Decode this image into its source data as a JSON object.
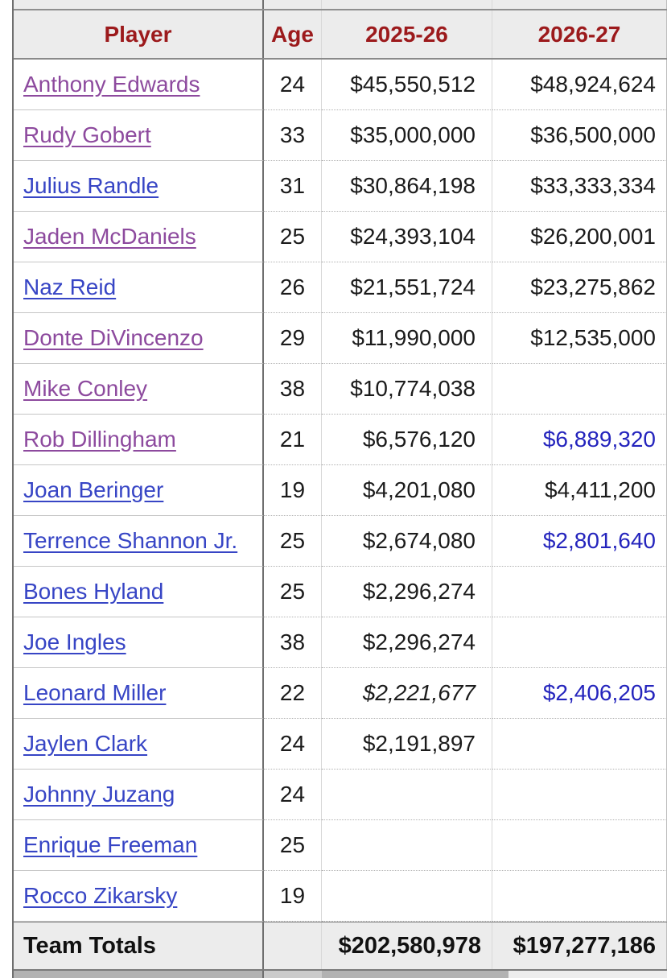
{
  "table": {
    "columns": [
      {
        "label": "Player"
      },
      {
        "label": "Age"
      },
      {
        "label": "2025-26"
      },
      {
        "label": "2026-27"
      }
    ],
    "rows": [
      {
        "player": "Anthony Edwards",
        "age": "24",
        "s2526": "$45,550,512",
        "s2627": "$48,924,624",
        "link_visited": true,
        "s2526_italic": false,
        "s2627_blue": false
      },
      {
        "player": "Rudy Gobert",
        "age": "33",
        "s2526": "$35,000,000",
        "s2627": "$36,500,000",
        "link_visited": true,
        "s2526_italic": false,
        "s2627_blue": false
      },
      {
        "player": "Julius Randle",
        "age": "31",
        "s2526": "$30,864,198",
        "s2627": "$33,333,334",
        "link_visited": false,
        "s2526_italic": false,
        "s2627_blue": false
      },
      {
        "player": "Jaden McDaniels",
        "age": "25",
        "s2526": "$24,393,104",
        "s2627": "$26,200,001",
        "link_visited": true,
        "s2526_italic": false,
        "s2627_blue": false
      },
      {
        "player": "Naz Reid",
        "age": "26",
        "s2526": "$21,551,724",
        "s2627": "$23,275,862",
        "link_visited": false,
        "s2526_italic": false,
        "s2627_blue": false
      },
      {
        "player": "Donte DiVincenzo",
        "age": "29",
        "s2526": "$11,990,000",
        "s2627": "$12,535,000",
        "link_visited": true,
        "s2526_italic": false,
        "s2627_blue": false
      },
      {
        "player": "Mike Conley",
        "age": "38",
        "s2526": "$10,774,038",
        "s2627": "",
        "link_visited": true,
        "s2526_italic": false,
        "s2627_blue": false
      },
      {
        "player": "Rob Dillingham",
        "age": "21",
        "s2526": "$6,576,120",
        "s2627": "$6,889,320",
        "link_visited": true,
        "s2526_italic": false,
        "s2627_blue": true
      },
      {
        "player": "Joan Beringer",
        "age": "19",
        "s2526": "$4,201,080",
        "s2627": "$4,411,200",
        "link_visited": false,
        "s2526_italic": false,
        "s2627_blue": false
      },
      {
        "player": "Terrence Shannon Jr.",
        "age": "25",
        "s2526": "$2,674,080",
        "s2627": "$2,801,640",
        "link_visited": false,
        "s2526_italic": false,
        "s2627_blue": true
      },
      {
        "player": "Bones Hyland",
        "age": "25",
        "s2526": "$2,296,274",
        "s2627": "",
        "link_visited": false,
        "s2526_italic": false,
        "s2627_blue": false
      },
      {
        "player": "Joe Ingles",
        "age": "38",
        "s2526": "$2,296,274",
        "s2627": "",
        "link_visited": false,
        "s2526_italic": false,
        "s2627_blue": false
      },
      {
        "player": "Leonard Miller",
        "age": "22",
        "s2526": "$2,221,677",
        "s2627": "$2,406,205",
        "link_visited": false,
        "s2526_italic": true,
        "s2627_blue": true
      },
      {
        "player": "Jaylen Clark",
        "age": "24",
        "s2526": "$2,191,897",
        "s2627": "",
        "link_visited": false,
        "s2526_italic": false,
        "s2627_blue": false
      },
      {
        "player": "Johnny Juzang",
        "age": "24",
        "s2526": "",
        "s2627": "",
        "link_visited": false,
        "s2526_italic": false,
        "s2627_blue": false
      },
      {
        "player": "Enrique Freeman",
        "age": "25",
        "s2526": "",
        "s2627": "",
        "link_visited": false,
        "s2526_italic": false,
        "s2627_blue": false
      },
      {
        "player": "Rocco Zikarsky",
        "age": "19",
        "s2526": "",
        "s2627": "",
        "link_visited": false,
        "s2526_italic": false,
        "s2627_blue": false
      }
    ],
    "totals": {
      "label": "Team Totals",
      "s2526": "$202,580,978",
      "s2627": "$197,277,186"
    }
  },
  "colors": {
    "header_text": "#9c1a1c",
    "link_blue": "#3745c5",
    "link_visited_purple": "#8d4a9e",
    "option_blue": "#2424bd",
    "header_bg": "#ececec",
    "body_text": "#1b1b1b"
  }
}
